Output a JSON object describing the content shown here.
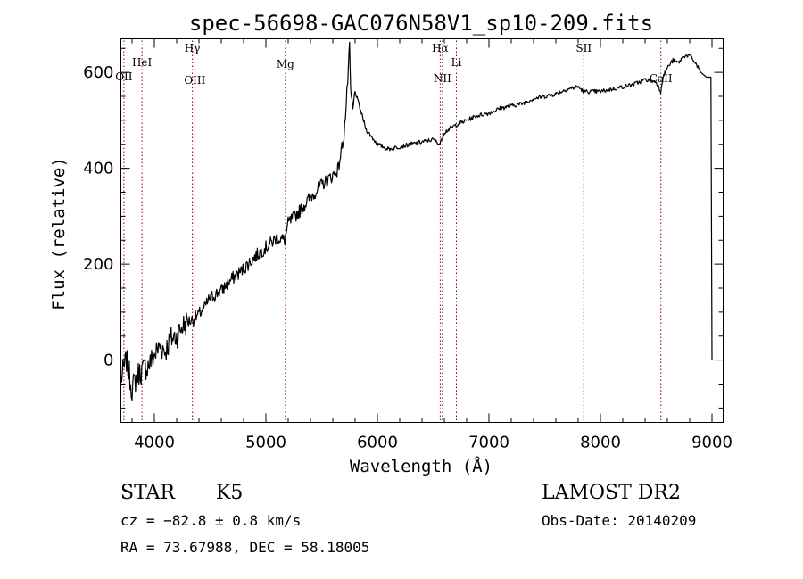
{
  "chart_data": {
    "type": "line",
    "title": "spec-56698-GAC076N58V1_sp10-209.fits",
    "xlabel": "Wavelength (Å)",
    "ylabel": "Flux (relative)",
    "xlim": [
      3700,
      9100
    ],
    "ylim": [
      -130,
      670
    ],
    "xticks": [
      4000,
      5000,
      6000,
      7000,
      8000,
      9000
    ],
    "yticks": [
      0,
      200,
      400,
      600
    ],
    "grid": false,
    "line_color": "#000000",
    "marker_color": "#8b0000",
    "series": [
      {
        "x": [
          3700,
          3750,
          3800,
          3850,
          3900,
          3950,
          4000,
          4050,
          4100,
          4150,
          4200,
          4250,
          4300,
          4350,
          4400,
          4450,
          4500,
          4600,
          4700,
          4800,
          4900,
          5000,
          5100,
          5170,
          5200,
          5300,
          5400,
          5500,
          5600,
          5650,
          5700,
          5720,
          5740,
          5750,
          5760,
          5780,
          5800,
          5850,
          5900,
          6000,
          6100,
          6200,
          6300,
          6400,
          6500,
          6560,
          6600,
          6700,
          6800,
          6900,
          7000,
          7100,
          7200,
          7300,
          7400,
          7500,
          7600,
          7700,
          7800,
          7850,
          7900,
          8000,
          8100,
          8200,
          8300,
          8400,
          8500,
          8540,
          8560,
          8600,
          8650,
          8700,
          8750,
          8800,
          8850,
          8900,
          8950,
          8990,
          8995,
          9000
        ],
        "y": [
          -40,
          0,
          -60,
          -30,
          -20,
          -10,
          10,
          30,
          20,
          45,
          50,
          70,
          80,
          85,
          95,
          110,
          130,
          145,
          170,
          190,
          215,
          235,
          255,
          250,
          285,
          310,
          340,
          365,
          385,
          400,
          470,
          530,
          610,
          650,
          560,
          520,
          560,
          520,
          480,
          450,
          440,
          445,
          450,
          455,
          460,
          450,
          475,
          490,
          500,
          510,
          515,
          525,
          530,
          535,
          545,
          550,
          555,
          565,
          570,
          560,
          560,
          560,
          565,
          570,
          575,
          585,
          580,
          560,
          590,
          610,
          625,
          620,
          635,
          635,
          620,
          600,
          590,
          590,
          300,
          0
        ]
      }
    ],
    "lines": [
      {
        "label": "OII",
        "x": 3727
      },
      {
        "label": "HeI",
        "x": 3889
      },
      {
        "label": "Hγ",
        "x": 4341
      },
      {
        "label": "OIII",
        "x": 4363
      },
      {
        "label": "Mg",
        "x": 5175
      },
      {
        "label": "Hα",
        "x": 6563
      },
      {
        "label": "NII",
        "x": 6583
      },
      {
        "label": "Li",
        "x": 6708
      },
      {
        "label": "SII",
        "x": 7850
      },
      {
        "label": "CaII",
        "x": 8542
      }
    ]
  },
  "info": {
    "class_label": "STAR",
    "subclass_label": "K5",
    "cz_line": "cz = −82.8 ± 0.8 km/s",
    "radec_line": "RA =  73.67988, DEC =  58.18005",
    "survey_label": "LAMOST DR2",
    "obsdate_line": "Obs-Date: 20140209"
  }
}
